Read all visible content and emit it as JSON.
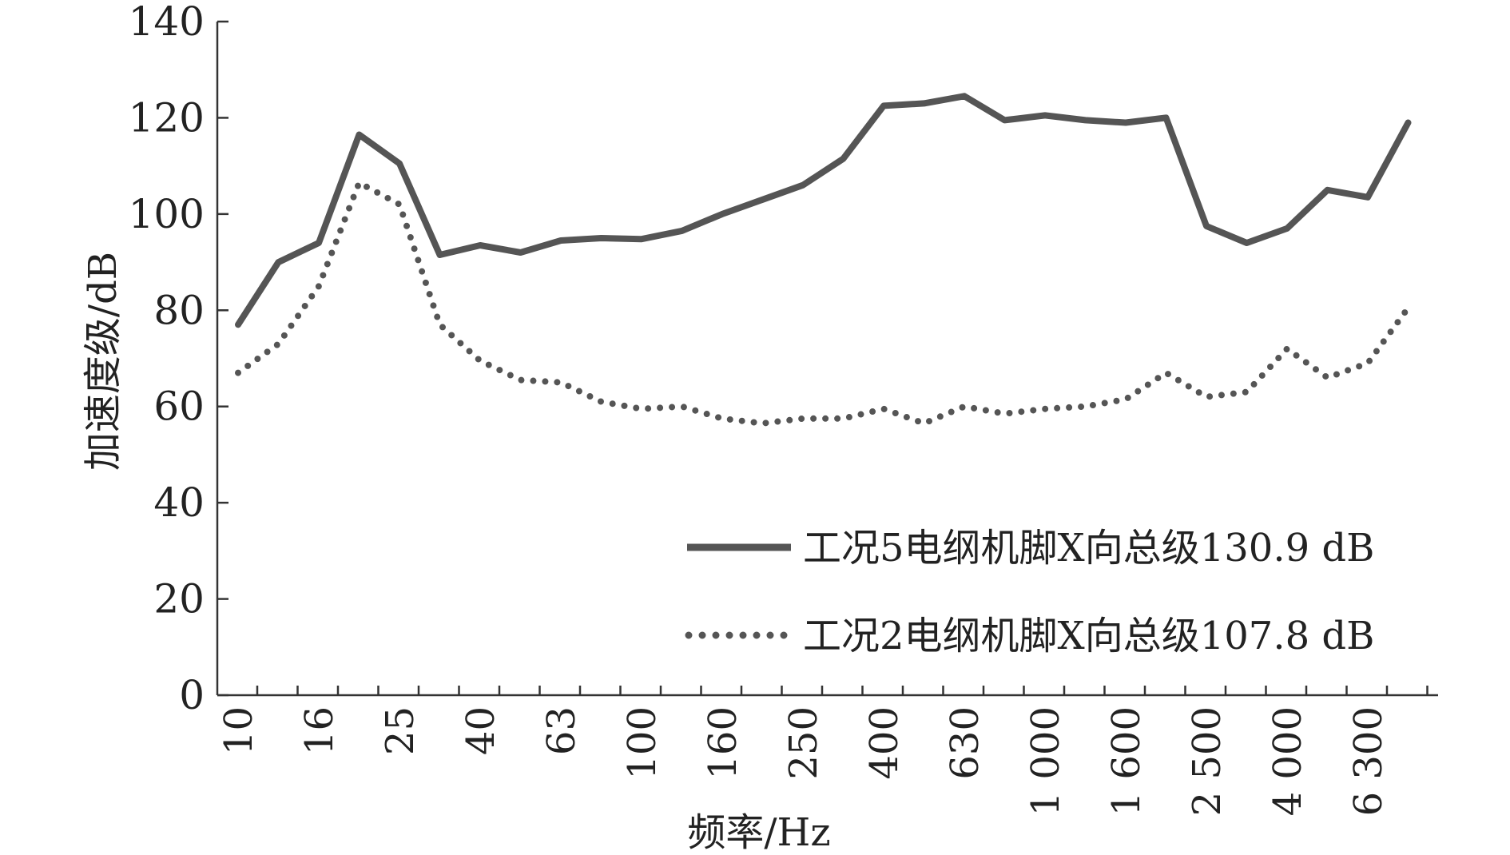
{
  "chart_data": {
    "type": "line",
    "xlabel": "频率/Hz",
    "ylabel": "加速度级/dB",
    "ylim": [
      0,
      140
    ],
    "yticks": [
      0,
      20,
      40,
      60,
      80,
      100,
      120,
      140
    ],
    "x": [
      "10",
      "12.5",
      "16",
      "20",
      "25",
      "31.5",
      "40",
      "50",
      "63",
      "80",
      "100",
      "125",
      "160",
      "200",
      "250",
      "315",
      "400",
      "500",
      "630",
      "800",
      "1 000",
      "1 250",
      "1 600",
      "2 000",
      "2 500",
      "3 150",
      "4 000",
      "5 000",
      "6 300",
      "8 000"
    ],
    "xtick_labels": [
      "10",
      "16",
      "25",
      "40",
      "63",
      "100",
      "160",
      "250",
      "400",
      "630",
      "1 000",
      "1 600",
      "2 500",
      "4 000",
      "6 300"
    ],
    "legend_position": "bottom-right",
    "grid": false,
    "series": [
      {
        "name": "工况5电纲机脚X向总级130.9 dB",
        "style": "solid",
        "color": "#555555",
        "values": [
          77,
          90,
          94,
          116.5,
          110.5,
          91.5,
          93.5,
          92,
          94.5,
          95,
          94.8,
          96.5,
          100,
          103,
          106,
          111.5,
          122.5,
          123,
          124.5,
          119.5,
          120.5,
          119.5,
          119,
          120,
          97.5,
          94,
          97,
          105,
          103.5,
          119
        ]
      },
      {
        "name": "工况2电纲机脚X向总级107.8 dB",
        "style": "dotted",
        "color": "#555555",
        "values": [
          67,
          73,
          85,
          106.5,
          102,
          77,
          69.5,
          65.5,
          65,
          61,
          59.5,
          60,
          57.5,
          56.5,
          57.5,
          57.5,
          59.5,
          56.5,
          60,
          58.5,
          59.5,
          60,
          61.5,
          67,
          62,
          63,
          72,
          66,
          69,
          80.5
        ]
      }
    ]
  }
}
